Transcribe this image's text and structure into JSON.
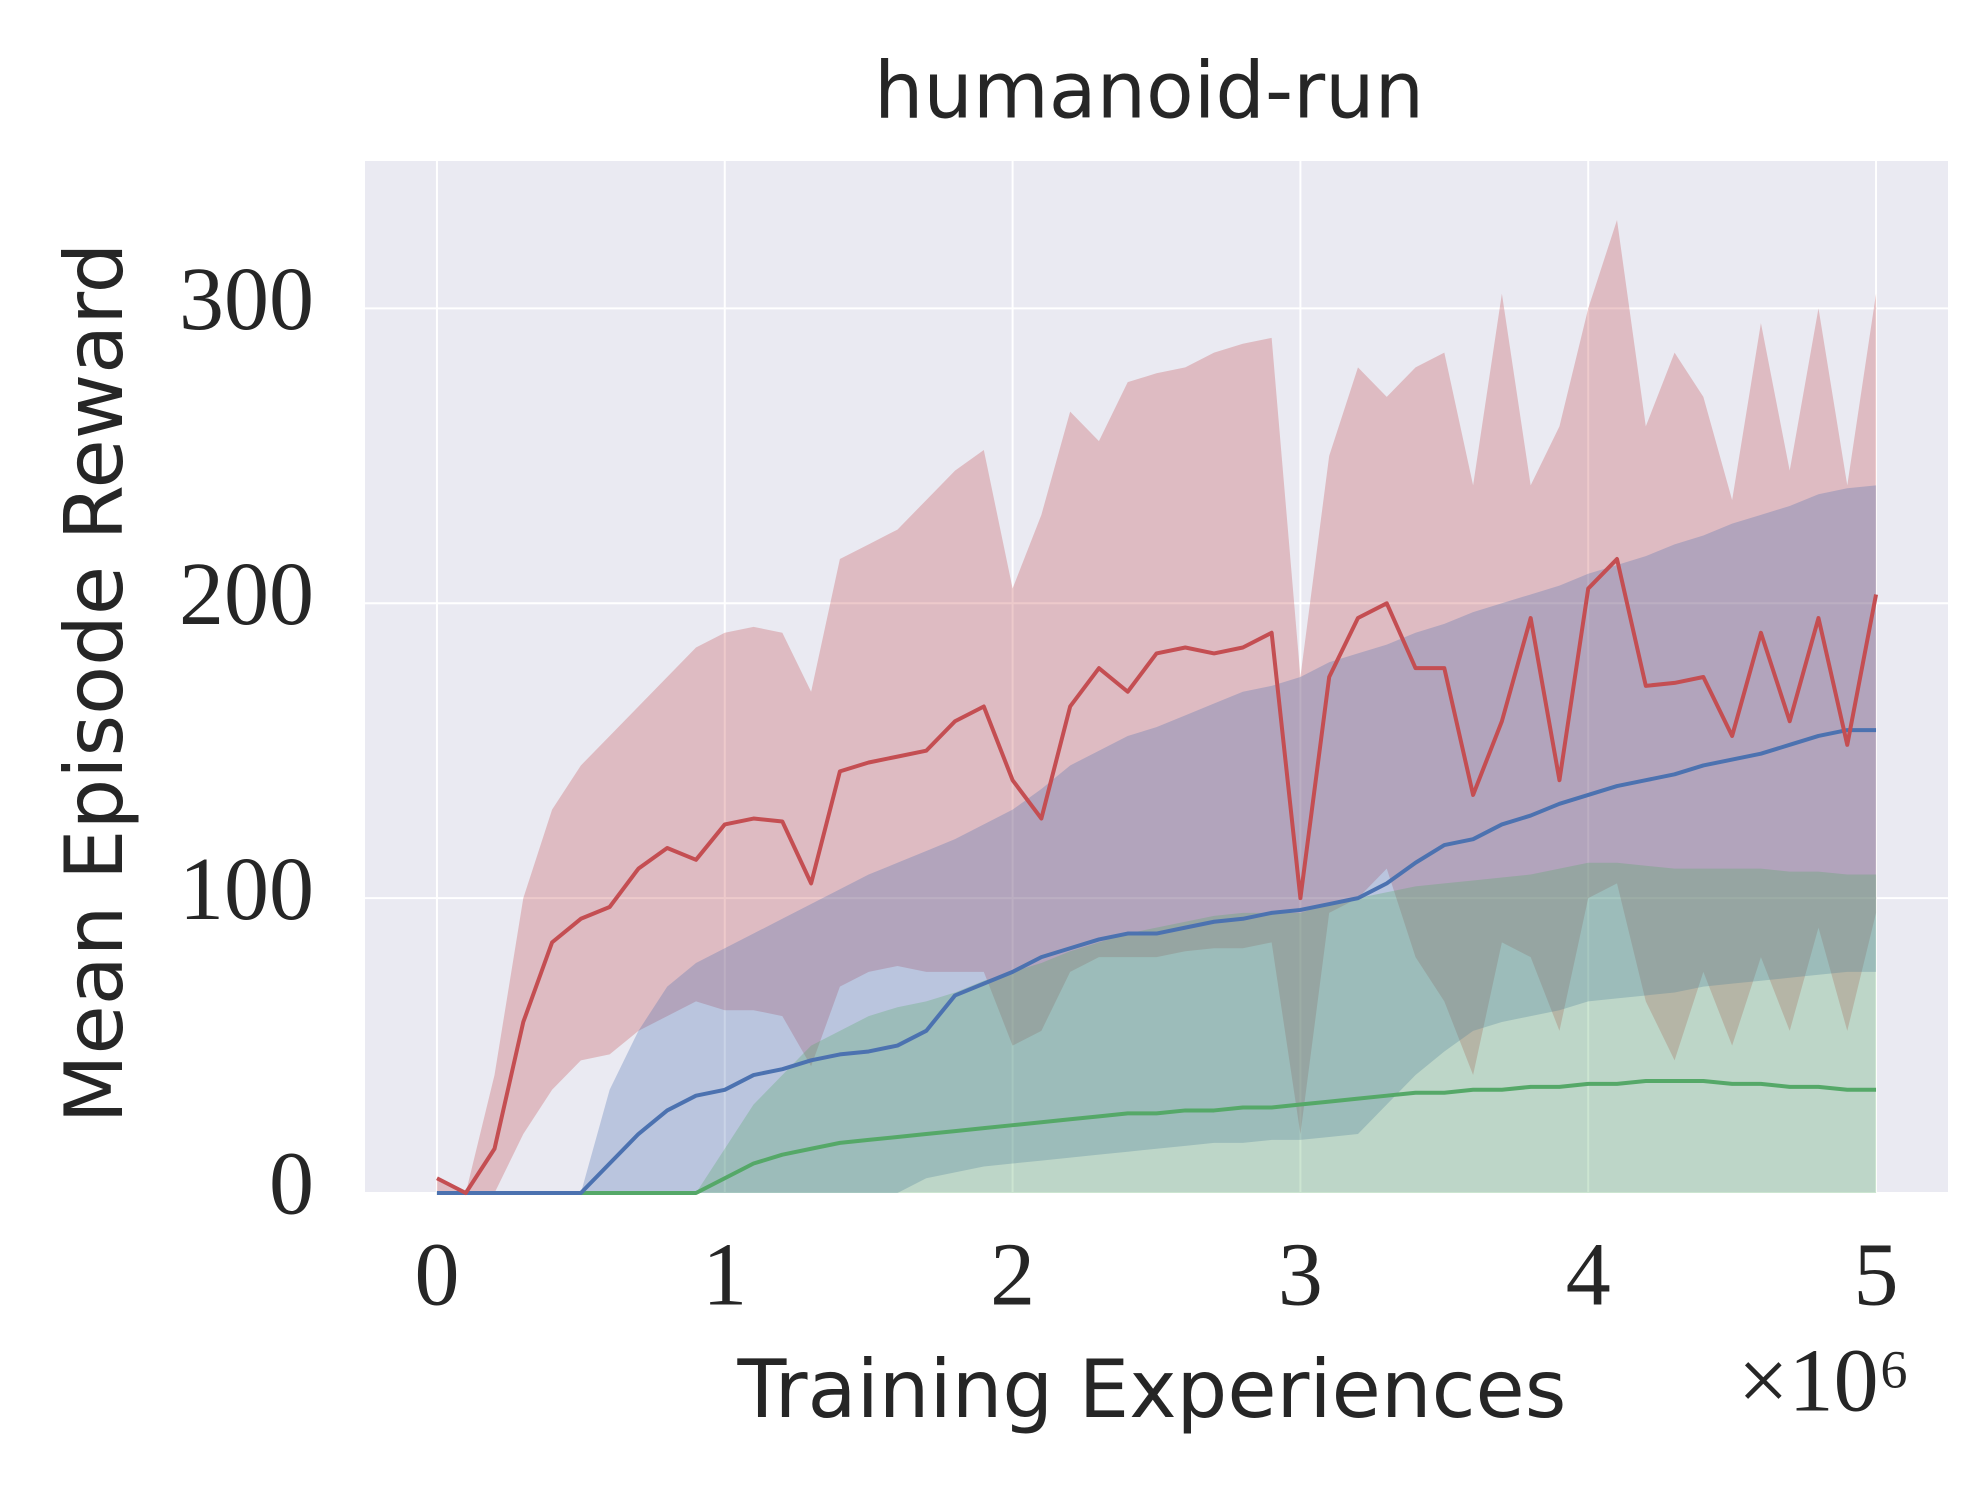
{
  "chart_data": {
    "type": "line",
    "title": "humanoid-run",
    "xlabel": "Training Experiences",
    "ylabel": "Mean Episode Reward",
    "x_offset_label": "×10⁶",
    "x": [
      0,
      0.1,
      0.2,
      0.3,
      0.4,
      0.5,
      0.6,
      0.7,
      0.8,
      0.9,
      1,
      1.1,
      1.2,
      1.3,
      1.4,
      1.5,
      1.6,
      1.7,
      1.8,
      1.9,
      2,
      2.1,
      2.2,
      2.3,
      2.4,
      2.5,
      2.6,
      2.7,
      2.8,
      2.9,
      3,
      3.1,
      3.2,
      3.3,
      3.4,
      3.5,
      3.6,
      3.7,
      3.8,
      3.9,
      4,
      4.1,
      4.2,
      4.3,
      4.4,
      4.5,
      4.6,
      4.7,
      4.8,
      4.9,
      5
    ],
    "series": [
      {
        "color": "#c44e52",
        "values": [
          5,
          0,
          15,
          58,
          85,
          93,
          97,
          110,
          117,
          113,
          125,
          127,
          126,
          105,
          143,
          146,
          148,
          150,
          160,
          165,
          140,
          127,
          165,
          178,
          170,
          183,
          185,
          183,
          185,
          190,
          100,
          175,
          195,
          200,
          178,
          178,
          135,
          160,
          195,
          140,
          205,
          215,
          172,
          173,
          175,
          155,
          190,
          160,
          195,
          152,
          203
        ],
        "upper": [
          5,
          0,
          40,
          100,
          130,
          145,
          155,
          165,
          175,
          185,
          190,
          192,
          190,
          170,
          215,
          220,
          225,
          235,
          245,
          252,
          205,
          230,
          265,
          255,
          275,
          278,
          280,
          285,
          288,
          290,
          175,
          250,
          280,
          270,
          280,
          285,
          240,
          305,
          240,
          260,
          300,
          330,
          260,
          285,
          270,
          235,
          295,
          245,
          300,
          240,
          305
        ],
        "lower": [
          0,
          0,
          0,
          20,
          35,
          45,
          47,
          55,
          60,
          65,
          62,
          62,
          60,
          43,
          70,
          75,
          77,
          75,
          75,
          75,
          50,
          55,
          75,
          80,
          80,
          80,
          82,
          83,
          83,
          85,
          20,
          95,
          100,
          110,
          80,
          65,
          40,
          85,
          80,
          55,
          100,
          105,
          65,
          45,
          75,
          50,
          80,
          55,
          90,
          55,
          95
        ]
      },
      {
        "color": "#4c72b0",
        "values": [
          0,
          0,
          0,
          0,
          0,
          0,
          10,
          20,
          28,
          33,
          35,
          40,
          42,
          45,
          47,
          48,
          50,
          55,
          67,
          71,
          75,
          80,
          83,
          86,
          88,
          88,
          90,
          92,
          93,
          95,
          96,
          98,
          100,
          105,
          112,
          118,
          120,
          125,
          128,
          132,
          135,
          138,
          140,
          142,
          145,
          147,
          149,
          152,
          155,
          157,
          157
        ],
        "upper": [
          0,
          0,
          0,
          0,
          0,
          0,
          35,
          55,
          70,
          78,
          83,
          88,
          93,
          98,
          103,
          108,
          112,
          116,
          120,
          125,
          130,
          137,
          145,
          150,
          155,
          158,
          162,
          166,
          170,
          172,
          175,
          180,
          183,
          186,
          190,
          193,
          197,
          200,
          203,
          206,
          210,
          213,
          216,
          220,
          223,
          227,
          230,
          233,
          237,
          239,
          240
        ],
        "lower": [
          0,
          0,
          0,
          0,
          0,
          0,
          0,
          0,
          0,
          0,
          0,
          0,
          0,
          0,
          0,
          0,
          0,
          5,
          7,
          9,
          10,
          11,
          12,
          13,
          14,
          15,
          16,
          17,
          17,
          18,
          18,
          19,
          20,
          30,
          40,
          48,
          55,
          58,
          60,
          62,
          65,
          66,
          67,
          68,
          70,
          71,
          72,
          73,
          74,
          75,
          75
        ]
      },
      {
        "color": "#55a868",
        "values": [
          0,
          0,
          0,
          0,
          0,
          0,
          0,
          0,
          0,
          0,
          5,
          10,
          13,
          15,
          17,
          18,
          19,
          20,
          21,
          22,
          23,
          24,
          25,
          26,
          27,
          27,
          28,
          28,
          29,
          29,
          30,
          31,
          32,
          33,
          34,
          34,
          35,
          35,
          36,
          36,
          37,
          37,
          38,
          38,
          38,
          37,
          37,
          36,
          36,
          35,
          35
        ],
        "upper": [
          0,
          0,
          0,
          0,
          0,
          0,
          0,
          0,
          0,
          0,
          15,
          30,
          40,
          50,
          55,
          60,
          63,
          65,
          68,
          72,
          75,
          78,
          82,
          85,
          88,
          90,
          92,
          94,
          95,
          95,
          95,
          98,
          100,
          102,
          104,
          105,
          106,
          107,
          108,
          110,
          112,
          112,
          111,
          110,
          110,
          110,
          110,
          109,
          109,
          108,
          108
        ],
        "lower": [
          0,
          0,
          0,
          0,
          0,
          0,
          0,
          0,
          0,
          0,
          0,
          0,
          0,
          0,
          0,
          0,
          0,
          0,
          0,
          0,
          0,
          0,
          0,
          0,
          0,
          0,
          0,
          0,
          0,
          0,
          0,
          0,
          0,
          0,
          0,
          0,
          0,
          0,
          0,
          0,
          0,
          0,
          0,
          0,
          0,
          0,
          0,
          0,
          0,
          0,
          0
        ]
      }
    ],
    "xlim": [
      -0.25,
      5.25
    ],
    "ylim": [
      0,
      350
    ],
    "xticks": [
      0,
      1,
      2,
      3,
      4,
      5
    ],
    "yticks": [
      0,
      100,
      200,
      300
    ],
    "grid": true,
    "band_opacity": 0.3
  }
}
